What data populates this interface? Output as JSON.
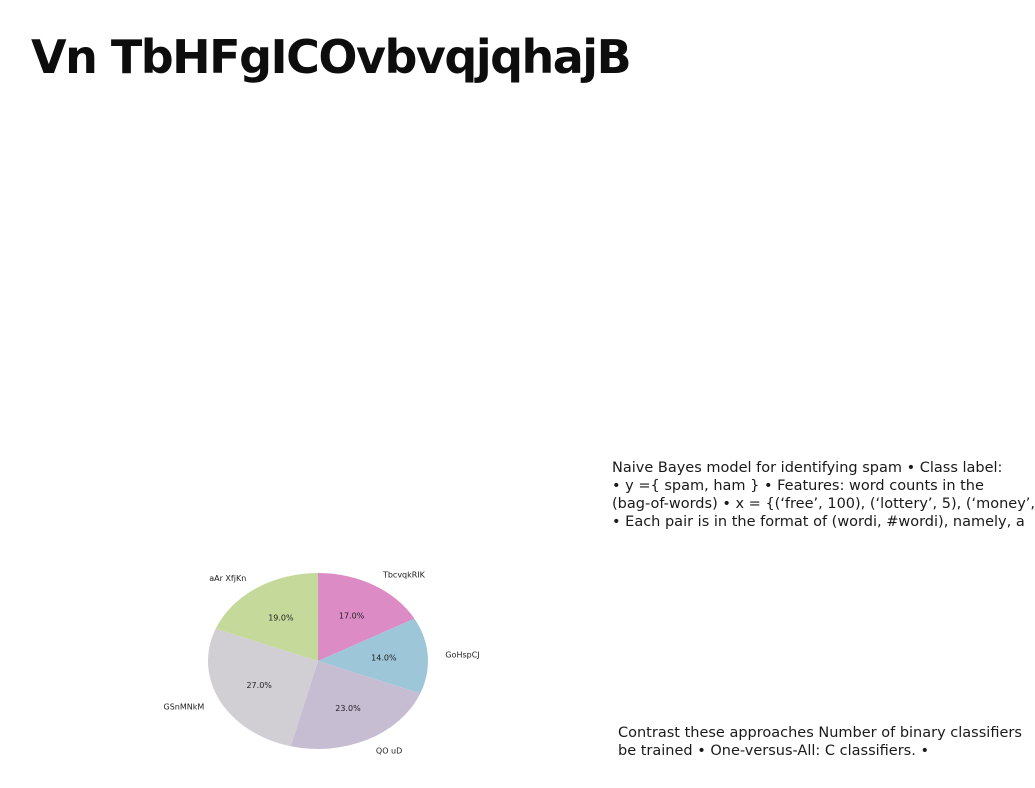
{
  "slide": {
    "title": "Vn TbHFgICOvbvqjqhajB",
    "paragraph_1": [
      "Naive Bayes model for identifying spam • Class label:",
      "• y ={ spam, ham } • Features: word counts in the",
      "(bag-of-words) • x = {(‘free’, 100), (‘lottery’, 5), (‘money’,",
      "• Each pair is in the format of (wordi, #wordi), namely, a"
    ],
    "paragraph_2": [
      "Contrast these approaches Number of binary classifiers",
      "be trained • One-versus-All: C classifiers. •"
    ]
  },
  "chart_data": {
    "type": "pie",
    "title": "",
    "slices": [
      {
        "label": "TbcvqkRIK",
        "value": 17.0,
        "display": "17.0%",
        "color": "#dc8bc4"
      },
      {
        "label": "GoHspCJ",
        "value": 14.0,
        "display": "14.0%",
        "color": "#9dc6d9"
      },
      {
        "label": "QO uD",
        "value": 23.0,
        "display": "23.0%",
        "color": "#c6bdd3"
      },
      {
        "label": "GSnMNkM",
        "value": 27.0,
        "display": "27.0%",
        "color": "#d1cfd4"
      },
      {
        "label": "aAr XfjKn",
        "value": 19.0,
        "display": "19.0%",
        "color": "#c5d99a"
      }
    ],
    "start_angle": "12 o'clock",
    "direction": "clockwise",
    "legend": "none"
  }
}
